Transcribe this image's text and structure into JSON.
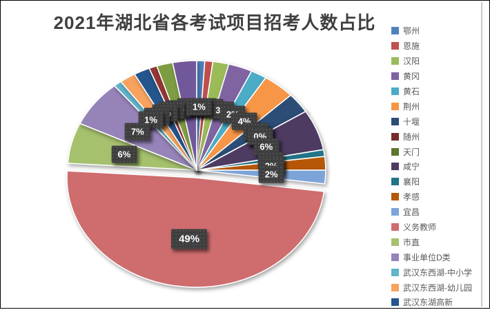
{
  "window": {
    "background": "#ffffff",
    "border_color": "#000000"
  },
  "chart_data": {
    "type": "pie",
    "title": "2021年湖北省各考试项目招考人数占比",
    "title_color": "#3F3F3F",
    "legend_position": "right",
    "legend_text_color": "#595959",
    "label_box_color": "#3E3E3E",
    "label_text_color": "#FFFFFF",
    "start_angle_deg": 0,
    "exploded_slice": "义务教师",
    "explode_offset": {
      "x": -1,
      "y": 11
    },
    "slices": [
      {
        "label": "鄂州",
        "value": 1,
        "display": "1%",
        "color": "#4F81BD",
        "in_legend": true
      },
      {
        "label": "恩施",
        "value": 1,
        "display": "1%",
        "color": "#C0504D",
        "in_legend": true
      },
      {
        "label": "汉阳",
        "value": 2,
        "display": "2%",
        "color": "#9BBB59",
        "in_legend": true
      },
      {
        "label": "黄冈",
        "value": 3,
        "display": "3%",
        "color": "#8064A2",
        "in_legend": true
      },
      {
        "label": "黄石",
        "value": 2,
        "display": "2%",
        "color": "#4BACC6",
        "in_legend": true
      },
      {
        "label": "荆州",
        "value": 4,
        "display": "4%",
        "color": "#F79646",
        "in_legend": true
      },
      {
        "label": "十堰",
        "value": 3,
        "display": "3%",
        "color": "#2C4D75",
        "in_legend": true
      },
      {
        "label": "随州",
        "value": 0,
        "display": "0%",
        "color": "#772C2A",
        "in_legend": true
      },
      {
        "label": "天门",
        "value": 0,
        "display": "0%",
        "color": "#5F7530",
        "in_legend": true
      },
      {
        "label": "咸宁",
        "value": 6,
        "display": "6%",
        "color": "#4D3B62",
        "in_legend": true
      },
      {
        "label": "襄阳",
        "value": 1,
        "display": "1%",
        "color": "#227488",
        "in_legend": true
      },
      {
        "label": "孝感",
        "value": 2,
        "display": "2%",
        "color": "#B65708",
        "in_legend": true
      },
      {
        "label": "宜昌",
        "value": 2,
        "display": "2%",
        "color": "#7DA4D9",
        "in_legend": true
      },
      {
        "label": "义务教师",
        "value": 49,
        "display": "49%",
        "color": "#CE6C6E",
        "in_legend": true
      },
      {
        "label": "市直",
        "value": 6,
        "display": "6%",
        "color": "#A5C16E",
        "in_legend": true
      },
      {
        "label": "事业单位D类",
        "value": 7,
        "display": "7%",
        "color": "#9683B8",
        "in_legend": true
      },
      {
        "label": "武汉东西湖-中小学",
        "value": 1,
        "display": "1%",
        "color": "#62B4CB",
        "in_legend": true
      },
      {
        "label": "武汉东西湖-幼儿园",
        "value": 2,
        "display": "2%",
        "color": "#F7A35F",
        "in_legend": true
      },
      {
        "label": "武汉东湖高新",
        "value": 2,
        "display": "2%",
        "color": "#24558C",
        "in_legend": true
      },
      {
        "label": "",
        "value": 1,
        "display": "1%",
        "color": "#953735",
        "in_legend": false
      },
      {
        "label": "",
        "value": 2,
        "display": "2%",
        "color": "#7E9D43",
        "in_legend": false
      },
      {
        "label": "",
        "value": 3,
        "display": "3%",
        "color": "#71589A",
        "in_legend": false
      }
    ]
  }
}
